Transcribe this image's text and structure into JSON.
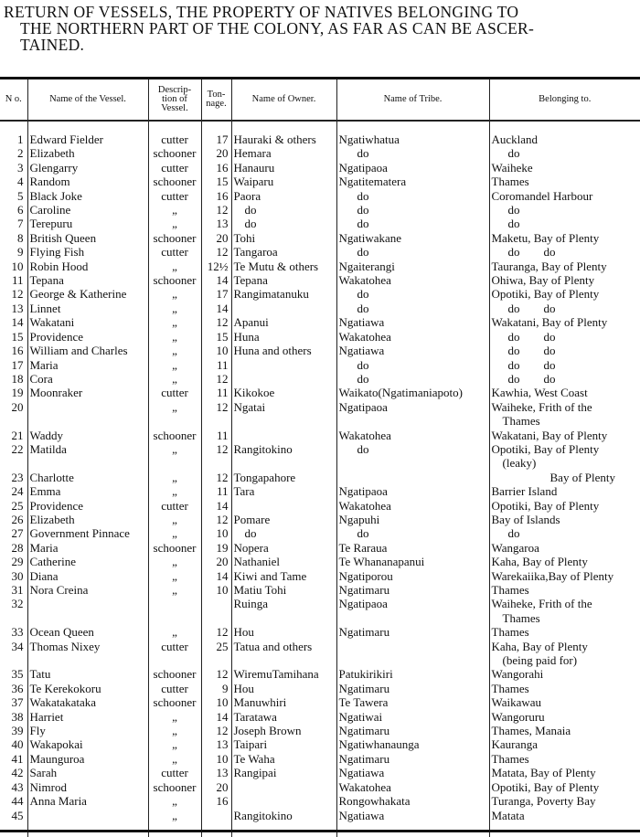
{
  "title": [
    "RETURN OF VESSELS, THE PROPERTY OF NATIVES BELONGING TO",
    "THE NORTHERN PART OF THE COLONY, AS FAR AS CAN BE ASCER-",
    "TAINED."
  ],
  "columns": [
    "N o.",
    "Name of the Vessel.",
    "Descrip- tion of Vessel.",
    "Ton- nage.",
    "Name of Owner.",
    "Name of Tribe.",
    "Belonging to."
  ],
  "rows": [
    {
      "no": "1",
      "vessel": "Edward Fielder",
      "desc": "cutter",
      "ton": "17",
      "owner": "Hauraki & others",
      "tribe": "Ngatiwhatua",
      "belong": "Auckland"
    },
    {
      "no": "2",
      "vessel": "Elizabeth",
      "desc": "schooner",
      "ton": "20",
      "owner": "Hemara",
      "tribe": "do",
      "belong": "do"
    },
    {
      "no": "3",
      "vessel": "Glengarry",
      "desc": "cutter",
      "ton": "16",
      "owner": "Hanauru",
      "tribe": "Ngatipaoa",
      "belong": "Waiheke"
    },
    {
      "no": "4",
      "vessel": "Random",
      "desc": "schooner",
      "ton": "15",
      "owner": "Waiparu",
      "tribe": "Ngatitematera",
      "belong": "Thames"
    },
    {
      "no": "5",
      "vessel": "Black Joke",
      "desc": "cutter",
      "ton": "16",
      "owner": "Paora",
      "tribe": "do",
      "belong": "Coromandel Harbour"
    },
    {
      "no": "6",
      "vessel": "Caroline",
      "desc": "„",
      "ton": "12",
      "owner": "do",
      "tribe": "do",
      "belong": "do"
    },
    {
      "no": "7",
      "vessel": "Terepuru",
      "desc": "„",
      "ton": "13",
      "owner": "do",
      "tribe": "do",
      "belong": "do"
    },
    {
      "no": "8",
      "vessel": "British Queen",
      "desc": "schooner",
      "ton": "20",
      "owner": "Tohi",
      "tribe": "Ngatiwakane",
      "belong": "Maketu, Bay of Plenty"
    },
    {
      "no": "9",
      "vessel": "Flying Fish",
      "desc": "cutter",
      "ton": "12",
      "owner": "Tangaroa",
      "tribe": "do",
      "belong": "do        do"
    },
    {
      "no": "10",
      "vessel": "Robin Hood",
      "desc": "„",
      "ton": "12½",
      "owner": "Te Mutu & others",
      "tribe": "Ngaiterangi",
      "belong": "Tauranga, Bay of Plenty"
    },
    {
      "no": "11",
      "vessel": "Tepana",
      "desc": "schooner",
      "ton": "14",
      "owner": "Tepana",
      "tribe": "Wakatohea",
      "belong": "Ohiwa, Bay of Plenty"
    },
    {
      "no": "12",
      "vessel": "George & Katherine",
      "desc": "„",
      "ton": "17",
      "owner": "Rangimatanuku",
      "tribe": "do",
      "belong": "Opotiki, Bay of Plenty"
    },
    {
      "no": "13",
      "vessel": "Linnet",
      "desc": "„",
      "ton": "14",
      "owner": "",
      "tribe": "do",
      "belong": "do        do"
    },
    {
      "no": "14",
      "vessel": "Wakatani",
      "desc": "„",
      "ton": "12",
      "owner": "Apanui",
      "tribe": "Ngatiawa",
      "belong": "Wakatani, Bay of Plenty"
    },
    {
      "no": "15",
      "vessel": "Providence",
      "desc": "„",
      "ton": "15",
      "owner": "Huna",
      "tribe": "Wakatohea",
      "belong": "do        do"
    },
    {
      "no": "16",
      "vessel": "William and Charles",
      "desc": "„",
      "ton": "10",
      "owner": "Huna and others",
      "tribe": "Ngatiawa",
      "belong": "do        do"
    },
    {
      "no": "17",
      "vessel": "Maria",
      "desc": "„",
      "ton": "11",
      "owner": "",
      "tribe": "do",
      "belong": "do        do"
    },
    {
      "no": "18",
      "vessel": "Cora",
      "desc": "„",
      "ton": "12",
      "owner": "",
      "tribe": "do",
      "belong": "do        do"
    },
    {
      "no": "19",
      "vessel": "Moonraker",
      "desc": "cutter",
      "ton": "11",
      "owner": "Kikokoe",
      "tribe": "Waikato(Ngatimaniapoto)",
      "belong": "Kawhia, West Coast"
    },
    {
      "no": "20",
      "vessel": "",
      "desc": "„",
      "ton": "12",
      "owner": "Ngatai",
      "tribe": "Ngatipaoa",
      "belong": "Waiheke, Frith of the",
      "belong2": "Thames"
    },
    {
      "no": "21",
      "vessel": "Waddy",
      "desc": "schooner",
      "ton": "11",
      "owner": "",
      "tribe": "Wakatohea",
      "belong": "Wakatani, Bay of Plenty"
    },
    {
      "no": "22",
      "vessel": "Matilda",
      "desc": "„",
      "ton": "12",
      "owner": "Rangitokino",
      "tribe": "do",
      "belong": "Opotiki, Bay of Plenty",
      "belong2": "(leaky)"
    },
    {
      "no": "23",
      "vessel": "Charlotte",
      "desc": "„",
      "ton": "12",
      "owner": "Tongapahore",
      "tribe": "",
      "belong": "Bay of Plenty"
    },
    {
      "no": "24",
      "vessel": "Emma",
      "desc": "„",
      "ton": "11",
      "owner": "Tara",
      "tribe": "Ngatipaoa",
      "belong": "Barrier Island"
    },
    {
      "no": "25",
      "vessel": "Providence",
      "desc": "cutter",
      "ton": "14",
      "owner": "",
      "tribe": "Wakatohea",
      "belong": "Opotiki, Bay of Plenty"
    },
    {
      "no": "26",
      "vessel": "Elizabeth",
      "desc": "„",
      "ton": "12",
      "owner": "Pomare",
      "tribe": "Ngapuhi",
      "belong": "Bay of Islands"
    },
    {
      "no": "27",
      "vessel": "Government Pinnace",
      "desc": "„",
      "ton": "10",
      "owner": "do",
      "tribe": "do",
      "belong": "do"
    },
    {
      "no": "28",
      "vessel": "Maria",
      "desc": "schooner",
      "ton": "19",
      "owner": "Nopera",
      "tribe": "Te Raraua",
      "belong": "Wangaroa"
    },
    {
      "no": "29",
      "vessel": "Catherine",
      "desc": "„",
      "ton": "20",
      "owner": "Nathaniel",
      "tribe": "Te Whananapanui",
      "belong": "Kaha, Bay of Plenty"
    },
    {
      "no": "30",
      "vessel": "Diana",
      "desc": "„",
      "ton": "14",
      "owner": "Kiwi and Tame",
      "tribe": "Ngatiporou",
      "belong": "Warekaiika,Bay of Plenty"
    },
    {
      "no": "31",
      "vessel": "Nora Creina",
      "desc": "„",
      "ton": "10",
      "owner": "Matiu Tohi",
      "tribe": "Ngatimaru",
      "belong": "Thames"
    },
    {
      "no": "32",
      "vessel": "",
      "desc": "",
      "ton": "",
      "owner": "Ruinga",
      "tribe": "Ngatipaoa",
      "belong": "Waiheke, Frith of the",
      "belong2": "Thames"
    },
    {
      "no": "33",
      "vessel": "Ocean Queen",
      "desc": "„",
      "ton": "12",
      "owner": "Hou",
      "tribe": "Ngatimaru",
      "belong": "Thames"
    },
    {
      "no": "34",
      "vessel": "Thomas Nixey",
      "desc": "cutter",
      "ton": "25",
      "owner": "Tatua and others",
      "tribe": "",
      "belong": "Kaha, Bay of Plenty",
      "belong2": "(being paid for)"
    },
    {
      "no": "35",
      "vessel": "Tatu",
      "desc": "schooner",
      "ton": "12",
      "owner": "WiremuTamihana",
      "tribe": "Patukirikiri",
      "belong": "Wangorahi"
    },
    {
      "no": "36",
      "vessel": "Te Kerekokoru",
      "desc": "cutter",
      "ton": "9",
      "owner": "Hou",
      "tribe": "Ngatimaru",
      "belong": "Thames"
    },
    {
      "no": "37",
      "vessel": "Wakatakataka",
      "desc": "schooner",
      "ton": "10",
      "owner": "Manuwhiri",
      "tribe": "Te Tawera",
      "belong": "Waikawau"
    },
    {
      "no": "38",
      "vessel": "Harriet",
      "desc": "„",
      "ton": "14",
      "owner": "Taratawa",
      "tribe": "Ngatiwai",
      "belong": "Wangoruru"
    },
    {
      "no": "39",
      "vessel": "Fly",
      "desc": "„",
      "ton": "12",
      "owner": "Joseph Brown",
      "tribe": "Ngatimaru",
      "belong": "Thames, Manaia"
    },
    {
      "no": "40",
      "vessel": "Wakapokai",
      "desc": "„",
      "ton": "13",
      "owner": "Taipari",
      "tribe": "Ngatiwhanaunga",
      "belong": "Kauranga"
    },
    {
      "no": "41",
      "vessel": "Maunguroa",
      "desc": "„",
      "ton": "10",
      "owner": "Te Waha",
      "tribe": "Ngatimaru",
      "belong": "Thames"
    },
    {
      "no": "42",
      "vessel": "Sarah",
      "desc": "cutter",
      "ton": "13",
      "owner": "Rangipai",
      "tribe": "Ngatiawa",
      "belong": "Matata, Bay of Plenty"
    },
    {
      "no": "43",
      "vessel": "Nimrod",
      "desc": "schooner",
      "ton": "20",
      "owner": "",
      "tribe": "Wakatohea",
      "belong": "Opotiki, Bay of Plenty"
    },
    {
      "no": "44",
      "vessel": "Anna Maria",
      "desc": "„",
      "ton": "16",
      "owner": "",
      "tribe": "Rongowhakata",
      "belong": "Turanga, Poverty Bay"
    },
    {
      "no": "45",
      "vessel": "",
      "desc": "„",
      "ton": "",
      "owner": "Rangitokino",
      "tribe": "Ngatiawa",
      "belong": "Matata"
    }
  ]
}
